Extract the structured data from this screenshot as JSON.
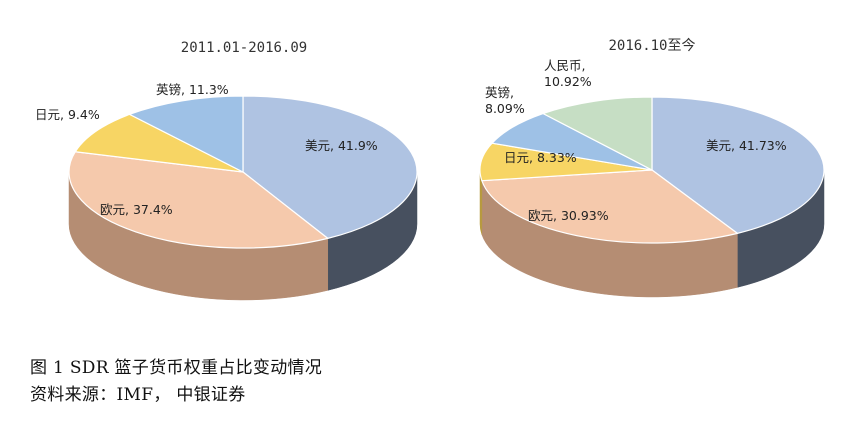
{
  "chart_data": [
    {
      "type": "pie",
      "title": "2011.01-2016.09",
      "slices": [
        {
          "category": "美元",
          "value": 41.9,
          "label": "美元, 41.9%",
          "color": "#AFC3E2",
          "side": "#47505F"
        },
        {
          "category": "欧元",
          "value": 37.4,
          "label": "欧元, 37.4%",
          "color": "#F5C9AC",
          "side": "#B58D73"
        },
        {
          "category": "日元",
          "value": 9.4,
          "label": "日元, 9.4%",
          "color": "#F7D564",
          "side": "#B79A3E"
        },
        {
          "category": "英镑",
          "value": 11.3,
          "label": "英镑, 11.3%",
          "color": "#9EC1E6",
          "side": "#5E7A97"
        }
      ]
    },
    {
      "type": "pie",
      "title": "2016.10至今",
      "slices": [
        {
          "category": "美元",
          "value": 41.73,
          "label": "美元, 41.73%",
          "color": "#AFC3E2",
          "side": "#47505F"
        },
        {
          "category": "欧元",
          "value": 30.93,
          "label": "欧元, 30.93%",
          "color": "#F5C9AC",
          "side": "#B58D73"
        },
        {
          "category": "日元",
          "value": 8.33,
          "label": "日元, 8.33%",
          "color": "#F7D564",
          "side": "#B79A3E"
        },
        {
          "category": "英镑",
          "value": 8.09,
          "label": "英镑, 8.09%",
          "color": "#9EC1E6",
          "side": "#5E7A97"
        },
        {
          "category": "人民币",
          "value": 10.92,
          "label": "人民币, 10.92%",
          "color": "#C6DEC4",
          "side": "#86A284"
        }
      ]
    }
  ],
  "caption": {
    "line1": "图 1   SDR 篮子货币权重占比变动情况",
    "line2": "资料来源：IMF， 中银证券"
  }
}
